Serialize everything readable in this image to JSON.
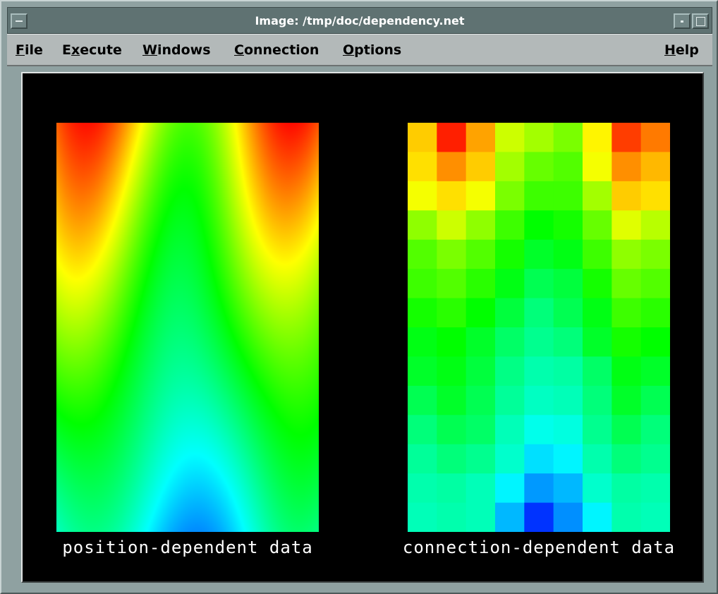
{
  "window": {
    "title": "Image: /tmp/doc/dependency.net"
  },
  "menubar": {
    "items": [
      {
        "key": "file",
        "prefix": "",
        "mnemonic": "F",
        "rest": "ile"
      },
      {
        "key": "execute",
        "prefix": "E",
        "mnemonic": "x",
        "rest": "ecute"
      },
      {
        "key": "windows",
        "prefix": "",
        "mnemonic": "W",
        "rest": "indows"
      },
      {
        "key": "connection",
        "prefix": "",
        "mnemonic": "C",
        "rest": "onnection"
      },
      {
        "key": "options",
        "prefix": "",
        "mnemonic": "O",
        "rest": "ptions"
      },
      {
        "key": "help",
        "prefix": "",
        "mnemonic": "H",
        "rest": "elp"
      }
    ]
  },
  "plots": {
    "left": {
      "label": "position-dependent data",
      "colormap": [
        "#0000ff",
        "#00ffff",
        "#00ff00",
        "#ffff00",
        "#ff0000"
      ]
    },
    "right": {
      "label": "connection-dependent data",
      "colormap": [
        "#0000ff",
        "#00ffff",
        "#00ff00",
        "#ffff00",
        "#ff0000"
      ],
      "grid": [
        [
          0.8,
          0.97,
          0.84,
          0.7,
          0.66,
          0.62,
          0.76,
          0.94,
          0.88
        ],
        [
          0.78,
          0.86,
          0.8,
          0.66,
          0.6,
          0.58,
          0.74,
          0.86,
          0.82
        ],
        [
          0.74,
          0.78,
          0.74,
          0.62,
          0.56,
          0.56,
          0.66,
          0.8,
          0.78
        ],
        [
          0.64,
          0.7,
          0.64,
          0.56,
          0.5,
          0.52,
          0.6,
          0.72,
          0.68
        ],
        [
          0.58,
          0.62,
          0.58,
          0.52,
          0.46,
          0.48,
          0.56,
          0.64,
          0.62
        ],
        [
          0.56,
          0.58,
          0.54,
          0.48,
          0.42,
          0.44,
          0.52,
          0.6,
          0.58
        ],
        [
          0.52,
          0.54,
          0.5,
          0.44,
          0.38,
          0.42,
          0.48,
          0.56,
          0.54
        ],
        [
          0.48,
          0.5,
          0.46,
          0.4,
          0.36,
          0.38,
          0.46,
          0.52,
          0.5
        ],
        [
          0.46,
          0.48,
          0.44,
          0.37,
          0.33,
          0.34,
          0.4,
          0.48,
          0.46
        ],
        [
          0.42,
          0.46,
          0.42,
          0.35,
          0.31,
          0.32,
          0.38,
          0.46,
          0.42
        ],
        [
          0.38,
          0.42,
          0.4,
          0.32,
          0.27,
          0.28,
          0.36,
          0.42,
          0.38
        ],
        [
          0.35,
          0.38,
          0.36,
          0.3,
          0.22,
          0.24,
          0.33,
          0.38,
          0.36
        ],
        [
          0.33,
          0.34,
          0.32,
          0.24,
          0.15,
          0.18,
          0.3,
          0.34,
          0.33
        ],
        [
          0.32,
          0.33,
          0.32,
          0.18,
          0.05,
          0.14,
          0.24,
          0.33,
          0.32
        ]
      ]
    }
  },
  "colors": {
    "title_bg": "#5f7272",
    "menubar_bg": "#b3b9b9",
    "canvas_bg": "#000000"
  }
}
